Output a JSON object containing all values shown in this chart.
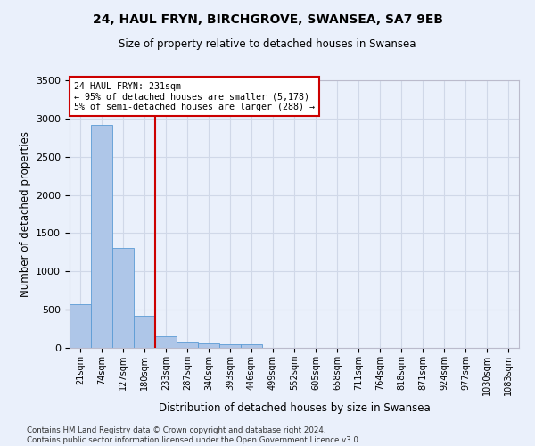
{
  "title": "24, HAUL FRYN, BIRCHGROVE, SWANSEA, SA7 9EB",
  "subtitle": "Size of property relative to detached houses in Swansea",
  "xlabel": "Distribution of detached houses by size in Swansea",
  "ylabel": "Number of detached properties",
  "footer": "Contains HM Land Registry data © Crown copyright and database right 2024.\nContains public sector information licensed under the Open Government Licence v3.0.",
  "categories": [
    "21sqm",
    "74sqm",
    "127sqm",
    "180sqm",
    "233sqm",
    "287sqm",
    "340sqm",
    "393sqm",
    "446sqm",
    "499sqm",
    "552sqm",
    "605sqm",
    "658sqm",
    "711sqm",
    "764sqm",
    "818sqm",
    "871sqm",
    "924sqm",
    "977sqm",
    "1030sqm",
    "1083sqm"
  ],
  "values": [
    570,
    2920,
    1310,
    415,
    155,
    80,
    55,
    50,
    45,
    0,
    0,
    0,
    0,
    0,
    0,
    0,
    0,
    0,
    0,
    0,
    0
  ],
  "bar_color": "#aec6e8",
  "bar_edge_color": "#5b9bd5",
  "grid_color": "#d0d8e8",
  "background_color": "#eaf0fb",
  "red_line_x": 3.5,
  "annotation_text": "24 HAUL FRYN: 231sqm\n← 95% of detached houses are smaller (5,178)\n5% of semi-detached houses are larger (288) →",
  "annotation_box_color": "#ffffff",
  "annotation_border_color": "#cc0000",
  "ylim": [
    0,
    3500
  ],
  "yticks": [
    0,
    500,
    1000,
    1500,
    2000,
    2500,
    3000,
    3500
  ]
}
